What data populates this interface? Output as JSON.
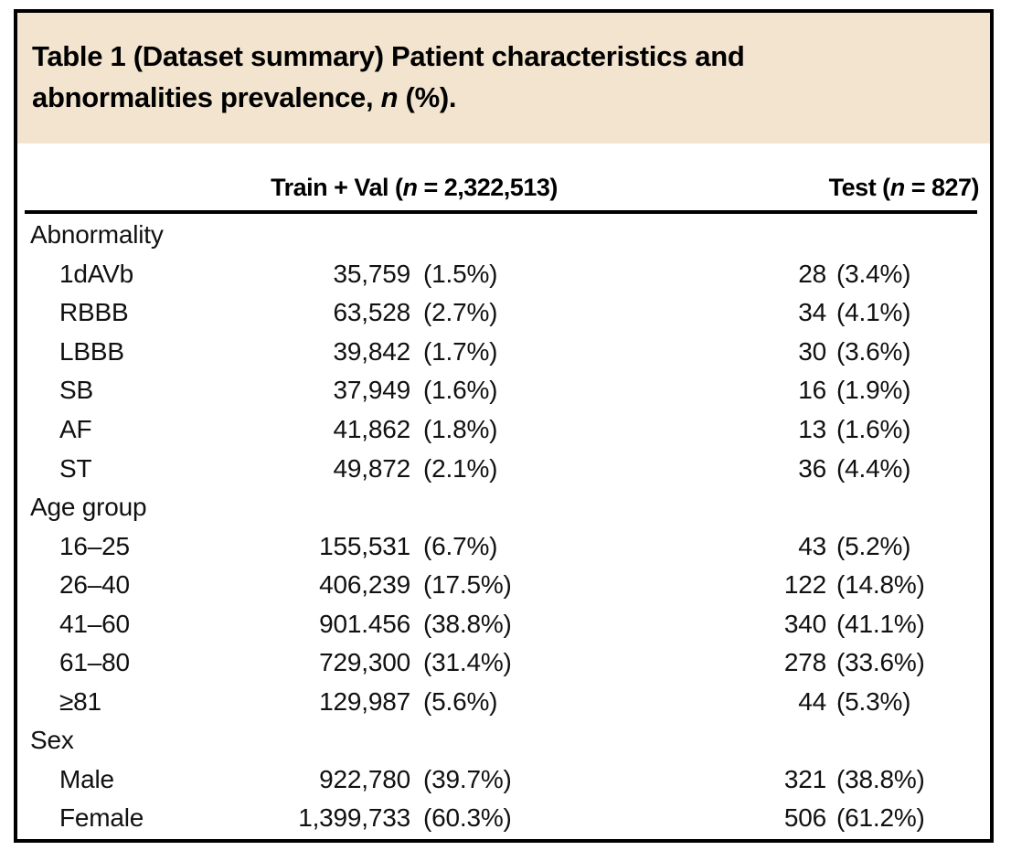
{
  "title": {
    "line1": "Table 1 (Dataset summary) Patient characteristics and",
    "line2_pre": "abnormalities prevalence, ",
    "n_symbol": "n",
    "line2_post": " (%)."
  },
  "header": {
    "trainval_pre": "Train + Val (",
    "trainval_n": "n",
    "trainval_post": " = 2,322,513)",
    "test_pre": "Test (",
    "test_n": "n",
    "test_post": " = 827)"
  },
  "colors": {
    "title_panel_bg": "#f2e4ce",
    "border": "#000000",
    "text": "#111111"
  },
  "sections": [
    {
      "label": "Abnormality",
      "rows": [
        {
          "label": "1dAVb",
          "trainval_n": "35,759",
          "trainval_pct": "(1.5%)",
          "test_n": "28",
          "test_pct": "(3.4%)"
        },
        {
          "label": "RBBB",
          "trainval_n": "63,528",
          "trainval_pct": "(2.7%)",
          "test_n": "34",
          "test_pct": "(4.1%)"
        },
        {
          "label": "LBBB",
          "trainval_n": "39,842",
          "trainval_pct": "(1.7%)",
          "test_n": "30",
          "test_pct": "(3.6%)"
        },
        {
          "label": "SB",
          "trainval_n": "37,949",
          "trainval_pct": "(1.6%)",
          "test_n": "16",
          "test_pct": "(1.9%)"
        },
        {
          "label": "AF",
          "trainval_n": "41,862",
          "trainval_pct": "(1.8%)",
          "test_n": "13",
          "test_pct": "(1.6%)"
        },
        {
          "label": "ST",
          "trainval_n": "49,872",
          "trainval_pct": "(2.1%)",
          "test_n": "36",
          "test_pct": "(4.4%)"
        }
      ]
    },
    {
      "label": "Age group",
      "rows": [
        {
          "label": "16–25",
          "trainval_n": "155,531",
          "trainval_pct": "(6.7%)",
          "test_n": "43",
          "test_pct": "(5.2%)"
        },
        {
          "label": "26–40",
          "trainval_n": "406,239",
          "trainval_pct": "(17.5%)",
          "test_n": "122",
          "test_pct": "(14.8%)"
        },
        {
          "label": "41–60",
          "trainval_n": "901.456",
          "trainval_pct": "(38.8%)",
          "test_n": "340",
          "test_pct": "(41.1%)"
        },
        {
          "label": "61–80",
          "trainval_n": "729,300",
          "trainval_pct": "(31.4%)",
          "test_n": "278",
          "test_pct": "(33.6%)"
        },
        {
          "label": "≥81",
          "trainval_n": "129,987",
          "trainval_pct": "(5.6%)",
          "test_n": "44",
          "test_pct": "(5.3%)"
        }
      ]
    },
    {
      "label": "Sex",
      "rows": [
        {
          "label": "Male",
          "trainval_n": "922,780",
          "trainval_pct": "(39.7%)",
          "test_n": "321",
          "test_pct": "(38.8%)"
        },
        {
          "label": "Female",
          "trainval_n": "1,399,733",
          "trainval_pct": "(60.3%)",
          "test_n": "506",
          "test_pct": "(61.2%)"
        }
      ]
    }
  ]
}
